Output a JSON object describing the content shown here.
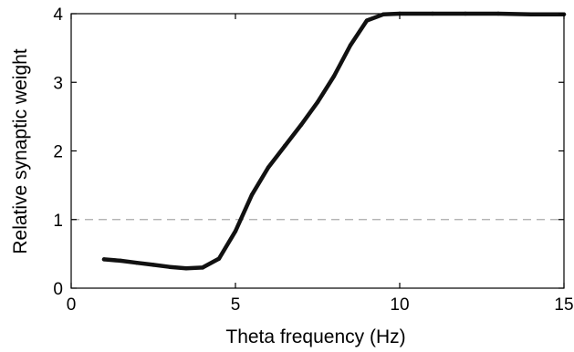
{
  "chart_data": {
    "type": "line",
    "xlabel": "Theta frequency (Hz)",
    "ylabel": "Relative synaptic weight",
    "xlim": [
      0,
      15
    ],
    "ylim": [
      0,
      4
    ],
    "x_ticks": [
      0,
      5,
      10,
      15
    ],
    "y_ticks": [
      0,
      1,
      2,
      3,
      4
    ],
    "x_tick_labels": [
      "0",
      "5",
      "10",
      "15"
    ],
    "y_tick_labels": [
      "0",
      "1",
      "2",
      "3",
      "4"
    ],
    "grid": false,
    "reference_line": {
      "y": 1,
      "style": "dashed",
      "color": "#aaaaaa"
    },
    "series": [
      {
        "color": "#111111",
        "x": [
          1.0,
          1.5,
          2.0,
          2.5,
          3.0,
          3.5,
          4.0,
          4.5,
          5.0,
          5.5,
          6.0,
          6.5,
          7.0,
          7.5,
          8.0,
          8.5,
          9.0,
          9.5,
          10.0,
          11.0,
          12.0,
          13.0,
          14.0,
          15.0
        ],
        "y": [
          0.42,
          0.4,
          0.37,
          0.34,
          0.31,
          0.29,
          0.3,
          0.43,
          0.83,
          1.36,
          1.76,
          2.07,
          2.38,
          2.71,
          3.09,
          3.54,
          3.9,
          3.99,
          4.0,
          4.0,
          4.0,
          4.0,
          3.99,
          3.99
        ]
      }
    ]
  }
}
